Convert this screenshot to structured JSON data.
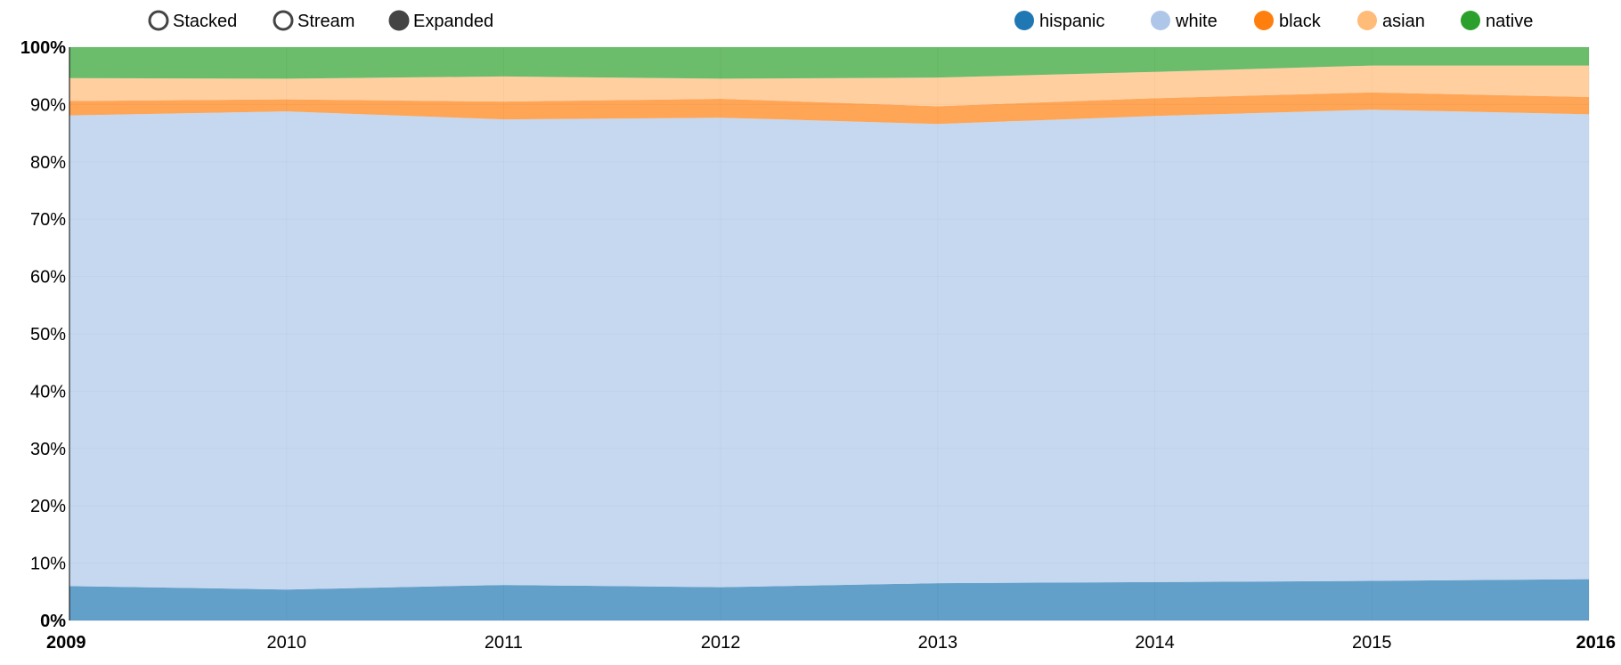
{
  "controls": [
    {
      "label": "Stacked",
      "selected": false
    },
    {
      "label": "Stream",
      "selected": false
    },
    {
      "label": "Expanded",
      "selected": true
    }
  ],
  "chart_data": {
    "type": "area",
    "stacking": "expanded",
    "x": [
      2009,
      2010,
      2011,
      2012,
      2013,
      2014,
      2015,
      2016
    ],
    "x_tick_labels": [
      "2009",
      "2010",
      "2011",
      "2012",
      "2013",
      "2014",
      "2015",
      "2016"
    ],
    "y_tick_labels": [
      "0%",
      "10%",
      "20%",
      "30%",
      "40%",
      "50%",
      "60%",
      "70%",
      "80%",
      "90%",
      "100%"
    ],
    "ylim": [
      0,
      1
    ],
    "grid": true,
    "legend_position": "top-right",
    "title": "",
    "xlabel": "",
    "ylabel": "",
    "series": [
      {
        "name": "hispanic",
        "color": "#1f77b4",
        "values": [
          0.06,
          0.054,
          0.062,
          0.058,
          0.065,
          0.067,
          0.069,
          0.072
        ]
      },
      {
        "name": "white",
        "color": "#aec7e8",
        "values": [
          0.821,
          0.834,
          0.812,
          0.819,
          0.801,
          0.813,
          0.822,
          0.811
        ]
      },
      {
        "name": "black",
        "color": "#ff7f0e",
        "values": [
          0.025,
          0.021,
          0.031,
          0.033,
          0.031,
          0.031,
          0.03,
          0.03
        ]
      },
      {
        "name": "asian",
        "color": "#ffbb78",
        "values": [
          0.04,
          0.036,
          0.044,
          0.035,
          0.05,
          0.046,
          0.047,
          0.055
        ]
      },
      {
        "name": "native",
        "color": "#2ca02c",
        "values": [
          0.054,
          0.055,
          0.051,
          0.055,
          0.053,
          0.043,
          0.032,
          0.032
        ]
      }
    ]
  }
}
